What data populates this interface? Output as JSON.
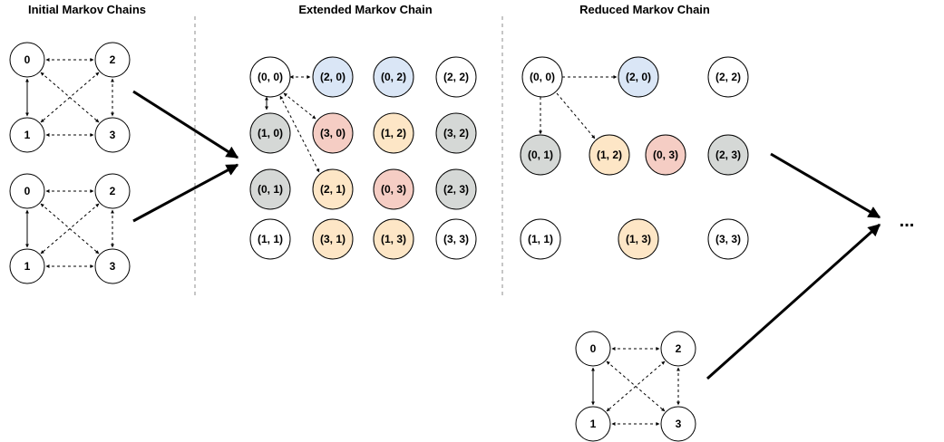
{
  "titles": {
    "initial": "Initial Markov Chains",
    "extended": "Extended Markov Chain",
    "reduced": "Reduced Markov Chain"
  },
  "ellipsis": "...",
  "colors": {
    "white": "#ffffff",
    "gray": "#d5d8d6",
    "blue": "#dae6f6",
    "red": "#f5cdc4",
    "orange": "#fde6c6",
    "stroke": "#000000",
    "divider": "#8c8c8c"
  },
  "small_chain_labels": [
    "0",
    "1",
    "2",
    "3"
  ],
  "extended_nodes": [
    {
      "label": "(0, 0)",
      "color": "white"
    },
    {
      "label": "(2, 0)",
      "color": "blue"
    },
    {
      "label": "(0, 2)",
      "color": "blue"
    },
    {
      "label": "(2, 2)",
      "color": "white"
    },
    {
      "label": "(1, 0)",
      "color": "gray"
    },
    {
      "label": "(3, 0)",
      "color": "red"
    },
    {
      "label": "(1, 2)",
      "color": "orange"
    },
    {
      "label": "(3, 2)",
      "color": "gray"
    },
    {
      "label": "(0, 1)",
      "color": "gray"
    },
    {
      "label": "(2, 1)",
      "color": "orange"
    },
    {
      "label": "(0, 3)",
      "color": "red"
    },
    {
      "label": "(2, 3)",
      "color": "gray"
    },
    {
      "label": "(1, 1)",
      "color": "white"
    },
    {
      "label": "(3, 1)",
      "color": "orange"
    },
    {
      "label": "(1, 3)",
      "color": "orange"
    },
    {
      "label": "(3, 3)",
      "color": "white"
    }
  ],
  "reduced_nodes": [
    {
      "label": "(0, 0)",
      "color": "white"
    },
    {
      "label": "(2, 0)",
      "color": "blue"
    },
    {
      "label": "(2, 2)",
      "color": "white"
    },
    {
      "label": "(0, 1)",
      "color": "gray"
    },
    {
      "label": "(1, 2)",
      "color": "orange"
    },
    {
      "label": "(0, 3)",
      "color": "red"
    },
    {
      "label": "(2, 3)",
      "color": "gray"
    },
    {
      "label": "(1, 1)",
      "color": "white"
    },
    {
      "label": "(1, 3)",
      "color": "orange"
    },
    {
      "label": "(3, 3)",
      "color": "white"
    }
  ]
}
